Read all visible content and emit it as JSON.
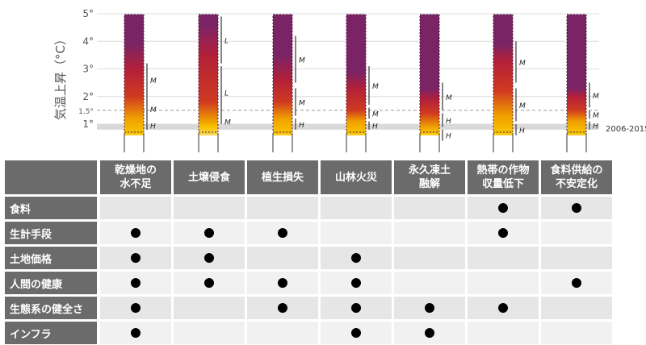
{
  "chart_data": {
    "type": "table",
    "axis": {
      "ylabel": "気温上昇（°C）",
      "ticks": [
        "5°",
        "4°",
        "3°",
        "2°",
        "1.5°",
        "1°"
      ],
      "tick_values": [
        5,
        4,
        3,
        2,
        1.5,
        1
      ],
      "ylim": [
        0.5,
        5
      ],
      "reference_band": {
        "label": "2006-2015",
        "from": 0.8,
        "to": 1.0
      },
      "dashed_line_value": 1.5
    },
    "colors": {
      "low": "#f8c200",
      "mid_low": "#f0a000",
      "mid": "#d03a20",
      "high": "#b2203a",
      "top": "#7a2466",
      "band": "#d9d9d9",
      "header_bg": "#6b6b6b",
      "row_a": "#e6e6e6",
      "row_b": "#f1f1f1"
    },
    "columns": [
      {
        "label": "乾燥地の\n水不足",
        "gradient": [
          [
            0.7,
            0
          ],
          [
            1.2,
            1
          ],
          [
            2.0,
            2
          ],
          [
            3.0,
            3
          ],
          [
            3.9,
            4
          ]
        ],
        "brackets": [
          {
            "from": 0.8,
            "to": 1.1,
            "label": "H"
          },
          {
            "from": 1.1,
            "to": 2.0,
            "label": "M"
          },
          {
            "from": 2.0,
            "to": 3.2,
            "label": "M"
          }
        ]
      },
      {
        "label": "土壌侵食",
        "gradient": [
          [
            0.9,
            0
          ],
          [
            1.1,
            1
          ],
          [
            1.8,
            2
          ],
          [
            3.5,
            3
          ],
          [
            4.6,
            4
          ]
        ],
        "brackets": [
          {
            "from": 1.0,
            "to": 1.2,
            "label": "M"
          },
          {
            "from": 1.2,
            "to": 3.1,
            "label": "L"
          },
          {
            "from": 3.2,
            "to": 4.9,
            "label": "L"
          }
        ]
      },
      {
        "label": "植生損失",
        "gradient": [
          [
            0.7,
            0
          ],
          [
            1.2,
            1
          ],
          [
            1.8,
            2
          ],
          [
            2.6,
            3
          ],
          [
            3.5,
            4
          ]
        ],
        "brackets": [
          {
            "from": 0.8,
            "to": 1.2,
            "label": "H"
          },
          {
            "from": 1.3,
            "to": 2.3,
            "label": "M"
          },
          {
            "from": 2.5,
            "to": 4.2,
            "label": "M"
          }
        ]
      },
      {
        "label": "山林火災",
        "gradient": [
          [
            0.7,
            0
          ],
          [
            1.1,
            1
          ],
          [
            1.5,
            2
          ],
          [
            2.3,
            3
          ],
          [
            2.9,
            4
          ]
        ],
        "brackets": [
          {
            "from": 0.8,
            "to": 1.1,
            "label": "H"
          },
          {
            "from": 1.2,
            "to": 1.6,
            "label": "M"
          },
          {
            "from": 1.7,
            "to": 3.1,
            "label": "M"
          }
        ]
      },
      {
        "label": "永久凍土\n融解",
        "gradient": [
          [
            0.7,
            0
          ],
          [
            0.9,
            1
          ],
          [
            1.4,
            2
          ],
          [
            1.9,
            3
          ],
          [
            2.3,
            4
          ]
        ],
        "brackets": [
          {
            "from": 0.4,
            "to": 0.8,
            "label": "H"
          },
          {
            "from": 0.9,
            "to": 1.4,
            "label": "H"
          },
          {
            "from": 1.5,
            "to": 2.5,
            "label": "M"
          }
        ]
      },
      {
        "label": "熱帯の作物\n収量低下",
        "gradient": [
          [
            0.7,
            0
          ],
          [
            1.3,
            1
          ],
          [
            2.2,
            2
          ],
          [
            3.3,
            3
          ],
          [
            3.9,
            4
          ]
        ],
        "brackets": [
          {
            "from": 0.6,
            "to": 1.0,
            "label": "H"
          },
          {
            "from": 1.1,
            "to": 2.3,
            "label": "M"
          },
          {
            "from": 2.5,
            "to": 4.0,
            "label": "M"
          }
        ]
      },
      {
        "label": "食料供給の\n不安定化",
        "gradient": [
          [
            0.7,
            0
          ],
          [
            1.1,
            1
          ],
          [
            1.5,
            2
          ],
          [
            2.0,
            3
          ],
          [
            2.3,
            4
          ]
        ],
        "brackets": [
          {
            "from": 0.8,
            "to": 1.1,
            "label": "H"
          },
          {
            "from": 1.2,
            "to": 1.5,
            "label": "M"
          },
          {
            "from": 1.6,
            "to": 2.5,
            "label": "M"
          }
        ]
      }
    ],
    "rows": [
      {
        "label": "食料",
        "marks": [
          false,
          false,
          false,
          false,
          false,
          true,
          true
        ]
      },
      {
        "label": "生計手段",
        "marks": [
          true,
          true,
          true,
          false,
          false,
          true,
          false
        ]
      },
      {
        "label": "土地価格",
        "marks": [
          true,
          true,
          false,
          true,
          false,
          false,
          false
        ]
      },
      {
        "label": "人間の健康",
        "marks": [
          true,
          true,
          true,
          true,
          false,
          false,
          true
        ]
      },
      {
        "label": "生態系の健全さ",
        "marks": [
          true,
          false,
          true,
          true,
          true,
          true,
          false
        ]
      },
      {
        "label": "インフラ",
        "marks": [
          true,
          false,
          false,
          true,
          true,
          false,
          false
        ]
      }
    ]
  }
}
